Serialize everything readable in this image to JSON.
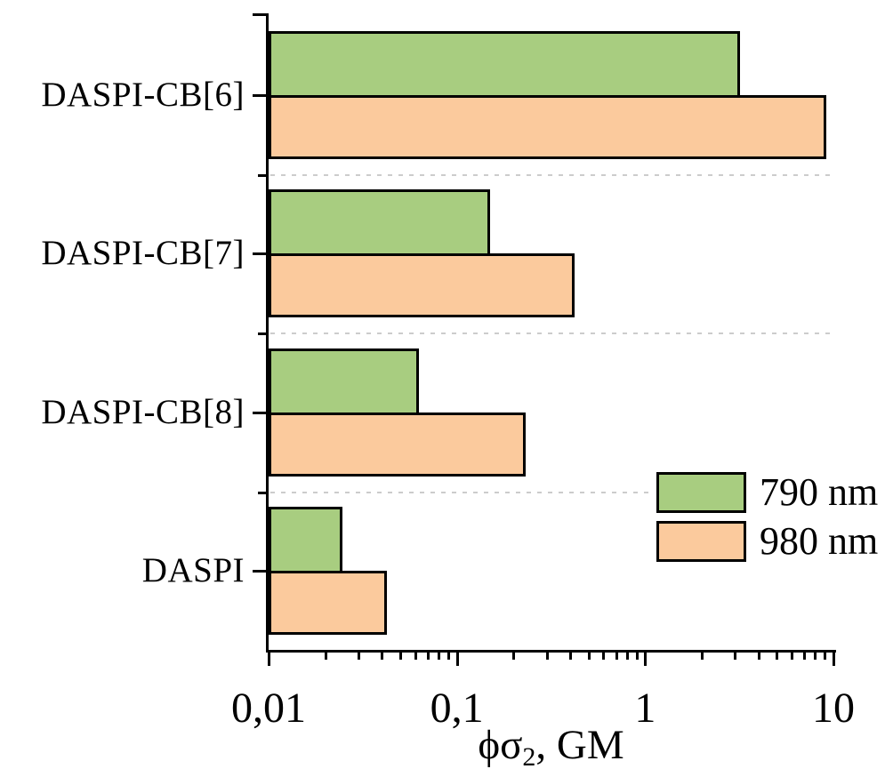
{
  "figure": {
    "background": "#ffffff"
  },
  "chart_data": {
    "type": "bar",
    "orientation": "horizontal",
    "x_scale": "log",
    "xlabel": "ϕσ2, GM",
    "xlabel_parts": {
      "pre": "ϕσ",
      "sub": "2",
      "post": ", GM"
    },
    "xlim": [
      0.01,
      10
    ],
    "x_ticks": [
      {
        "value": 0.01,
        "label": "0,01"
      },
      {
        "value": 0.1,
        "label": "0,1"
      },
      {
        "value": 1,
        "label": "1"
      },
      {
        "value": 10,
        "label": "10"
      }
    ],
    "x_minor_ticks_per_decade": [
      2,
      3,
      4,
      5,
      6,
      7,
      8,
      9
    ],
    "categories": [
      "DASPI-CB[6]",
      "DASPI-CB[7]",
      "DASPI-CB[8]",
      "DASPI"
    ],
    "series": [
      {
        "name": "790 nm",
        "color": "#a8cd80",
        "values": [
          3.1,
          0.145,
          0.061,
          0.024
        ]
      },
      {
        "name": "980 nm",
        "color": "#fbca9d",
        "values": [
          8.9,
          0.41,
          0.225,
          0.041
        ]
      }
    ],
    "legend_position": "middle-right",
    "grid": "dashed gray horizontal separators between category groups",
    "units": "GM"
  },
  "style_colors": {
    "bar_border": "#000000",
    "axis": "#000000",
    "grid_dash": "#cccccc",
    "text": "#000000"
  }
}
